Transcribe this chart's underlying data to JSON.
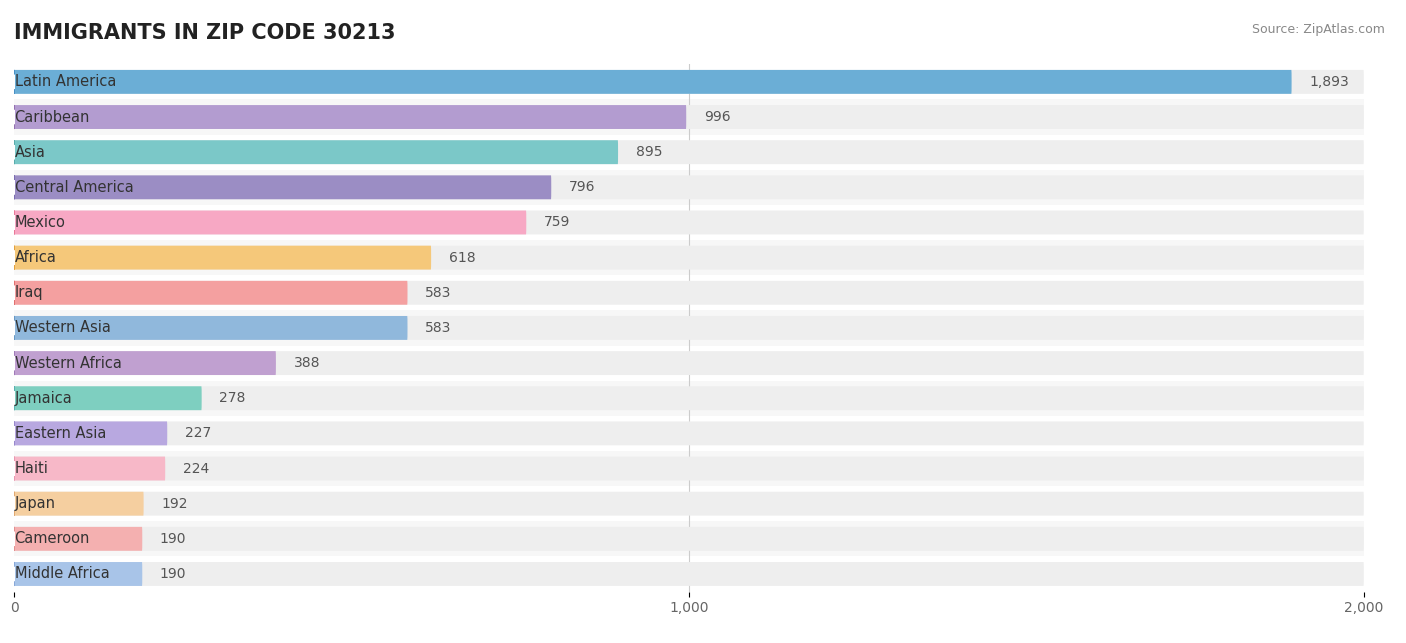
{
  "title": "IMMIGRANTS IN ZIP CODE 30213",
  "source_text": "Source: ZipAtlas.com",
  "categories": [
    "Latin America",
    "Caribbean",
    "Asia",
    "Central America",
    "Mexico",
    "Africa",
    "Iraq",
    "Western Asia",
    "Western Africa",
    "Jamaica",
    "Eastern Asia",
    "Haiti",
    "Japan",
    "Cameroon",
    "Middle Africa"
  ],
  "values": [
    1893,
    996,
    895,
    796,
    759,
    618,
    583,
    583,
    388,
    278,
    227,
    224,
    192,
    190,
    190
  ],
  "bar_colors": [
    "#6BAED6",
    "#B39CD0",
    "#7BC8C8",
    "#9B8DC4",
    "#F7A8C4",
    "#F5C87A",
    "#F4A0A0",
    "#90B8DC",
    "#C0A0D0",
    "#7ECFC0",
    "#B8A8E0",
    "#F7B8C8",
    "#F5CFA0",
    "#F4B0B0",
    "#A8C4E8"
  ],
  "dot_colors": [
    "#4A90C4",
    "#9370B0",
    "#5AACAC",
    "#7A6DB0",
    "#E87898",
    "#E0A040",
    "#E07070",
    "#6898C4",
    "#A07AB8",
    "#5AAFAF",
    "#9888CC",
    "#E898B0",
    "#E0A870",
    "#E09090",
    "#88A8D8"
  ],
  "background_color": "#ffffff",
  "bar_bg_color": "#EEEEEE",
  "bar_bg_color2": "#F5F5F5",
  "data_max": 2000,
  "xlim": [
    0,
    2000
  ],
  "xtick_labels": [
    "0",
    "1,000",
    "2,000"
  ],
  "title_fontsize": 15,
  "value_fontsize": 10,
  "label_fontsize": 10.5,
  "bar_height": 0.68
}
